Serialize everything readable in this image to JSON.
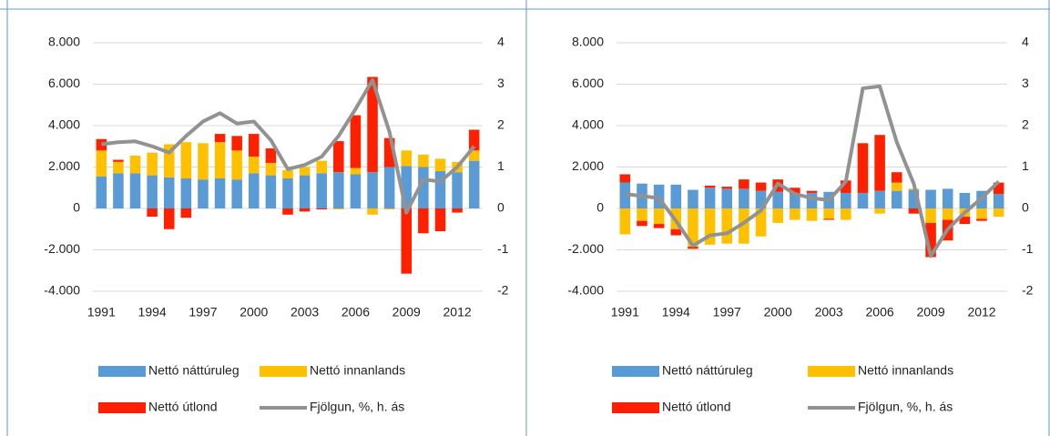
{
  "chart_data": [
    {
      "type": "bar",
      "categories": [
        "1991",
        null,
        null,
        "1994",
        null,
        null,
        "1997",
        null,
        null,
        "2000",
        null,
        null,
        "2003",
        null,
        null,
        "2006",
        null,
        null,
        "2009",
        null,
        null,
        "2012",
        null
      ],
      "series": [
        {
          "name": "Nettó náttúruleg",
          "color": "#5b9bd5",
          "values": [
            1550,
            1700,
            1700,
            1600,
            1500,
            1450,
            1400,
            1450,
            1400,
            1700,
            1600,
            1450,
            1600,
            1700,
            1750,
            1650,
            1750,
            2000,
            2050,
            2000,
            1800,
            1750,
            2300
          ]
        },
        {
          "name": "Nettó innanlands",
          "color": "#ffc000",
          "values": [
            1250,
            550,
            850,
            1100,
            1600,
            1750,
            1750,
            1750,
            1400,
            800,
            600,
            400,
            400,
            600,
            -50,
            300,
            -300,
            -50,
            750,
            600,
            600,
            500,
            500
          ]
        },
        {
          "name": "Nettó útlond",
          "color": "#ff2000",
          "values": [
            550,
            100,
            0,
            -400,
            -1000,
            -450,
            0,
            400,
            700,
            1100,
            700,
            -300,
            -150,
            -50,
            1500,
            2550,
            4600,
            1400,
            -3150,
            -1200,
            -1100,
            -200,
            1000
          ]
        },
        {
          "name": "Fjölgun, %, h. ás",
          "color": "#929292",
          "type": "line",
          "axis": "y2",
          "values": [
            1.55,
            1.6,
            1.62,
            1.5,
            1.35,
            1.75,
            2.1,
            2.3,
            2.05,
            2.1,
            1.65,
            0.95,
            1.05,
            1.25,
            1.75,
            2.4,
            3.1,
            1.85,
            -0.1,
            0.7,
            0.65,
            1.0,
            1.5
          ]
        }
      ],
      "ylim": [
        -4000,
        8000
      ],
      "yticks": [
        {
          "value": -4000,
          "label": "-4.000"
        },
        {
          "value": -2000,
          "label": "-2.000"
        },
        0,
        {
          "value": 2000,
          "label": "2.000"
        },
        {
          "value": 4000,
          "label": "4.000"
        },
        {
          "value": 6000,
          "label": "6.000"
        },
        {
          "value": 8000,
          "label": "8.000"
        }
      ],
      "y2lim": [
        -2,
        4
      ],
      "y2ticks": [
        -2,
        -1,
        0,
        1,
        2,
        3,
        4
      ],
      "stacked": true,
      "grid": true,
      "legend": "bottom"
    },
    {
      "type": "bar",
      "categories": [
        "1991",
        null,
        null,
        "1994",
        null,
        null,
        "1997",
        null,
        null,
        "2000",
        null,
        null,
        "2003",
        null,
        null,
        "2006",
        null,
        null,
        "2009",
        null,
        null,
        "2012",
        null
      ],
      "series": [
        {
          "name": "Nettó náttúruleg",
          "color": "#5b9bd5",
          "values": [
            1250,
            1200,
            1150,
            1150,
            900,
            1000,
            950,
            950,
            850,
            800,
            700,
            750,
            800,
            750,
            750,
            850,
            850,
            900,
            900,
            950,
            750,
            850,
            700
          ]
        },
        {
          "name": "Nettó innanlands",
          "color": "#ffc000",
          "values": [
            -1250,
            -600,
            -750,
            -1000,
            -1850,
            -1750,
            -1700,
            -1700,
            -1350,
            -700,
            -550,
            -600,
            -500,
            -550,
            0,
            -250,
            400,
            50,
            -700,
            -550,
            -400,
            -500,
            -400
          ]
        },
        {
          "name": "Nettó útlond",
          "color": "#ff2000",
          "values": [
            400,
            -250,
            -200,
            -300,
            -100,
            100,
            100,
            450,
            400,
            600,
            300,
            100,
            -50,
            600,
            2400,
            2700,
            500,
            -250,
            -1650,
            -1000,
            -350,
            -100,
            550
          ]
        },
        {
          "name": "Fjölgun, %, h. ás",
          "color": "#929292",
          "type": "line",
          "axis": "y2",
          "values": [
            0.35,
            0.3,
            0.25,
            -0.3,
            -0.9,
            -0.65,
            -0.6,
            -0.35,
            -0.05,
            0.6,
            0.35,
            0.25,
            0.2,
            0.65,
            2.9,
            2.95,
            1.6,
            0.6,
            -1.15,
            -0.5,
            -0.1,
            0.25,
            0.65
          ]
        }
      ],
      "ylim": [
        -4000,
        8000
      ],
      "yticks": [
        {
          "value": -4000,
          "label": "-4.000"
        },
        {
          "value": -2000,
          "label": "-2.000"
        },
        0,
        {
          "value": 2000,
          "label": "2.000"
        },
        {
          "value": 4000,
          "label": "4.000"
        },
        {
          "value": 6000,
          "label": "6.000"
        },
        {
          "value": 8000,
          "label": "8.000"
        }
      ],
      "y2lim": [
        -2,
        4
      ],
      "y2ticks": [
        -2,
        -1,
        0,
        1,
        2,
        3,
        4
      ],
      "stacked": true,
      "grid": true,
      "legend": "bottom"
    }
  ]
}
